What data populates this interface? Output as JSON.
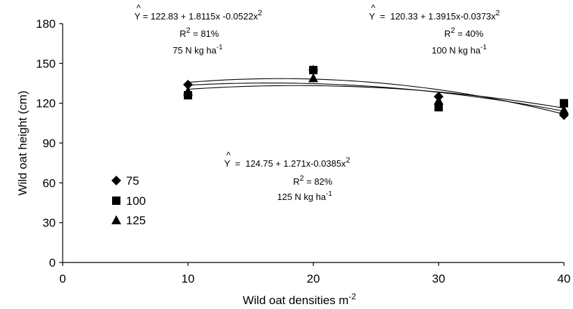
{
  "chart_data": {
    "type": "scatter",
    "xlabel": "Wild oat densities m",
    "xlabel_sup": "-2",
    "ylabel": "Wild oat height (cm)",
    "xlim": [
      0,
      40
    ],
    "ylim": [
      0,
      180
    ],
    "xticks": [
      "0",
      "10",
      "20",
      "30",
      "40"
    ],
    "yticks": [
      "0",
      "30",
      "60",
      "90",
      "120",
      "150",
      "180"
    ],
    "grid": false,
    "legend_position": "left",
    "series": [
      {
        "name": "75",
        "marker": "diamond",
        "x": [
          10,
          20,
          30,
          40
        ],
        "y": [
          134,
          145,
          125,
          111
        ],
        "fit": {
          "a": 122.83,
          "b": 1.8115,
          "c": -0.0522
        }
      },
      {
        "name": "100",
        "marker": "square",
        "x": [
          10,
          20,
          30,
          40
        ],
        "y": [
          126,
          145,
          117,
          120
        ],
        "fit": {
          "a": 120.33,
          "b": 1.3915,
          "c": -0.0373
        }
      },
      {
        "name": "125",
        "marker": "triangle",
        "x": [
          10,
          20,
          30,
          40
        ],
        "y": [
          129,
          139,
          122,
          115
        ],
        "fit": {
          "a": 124.75,
          "b": 1.271,
          "c": -0.0385
        }
      }
    ],
    "annotations": [
      {
        "hat": "^",
        "y_symbol": "Y",
        "equation": " = 122.83 + 1.8115x -0.0522x",
        "eq_sup": "2",
        "r2_prefix": "R",
        "r2_sup": "2",
        "r2_value": " = 81%",
        "dose_text": "75 N kg ha",
        "dose_sup": "-1"
      },
      {
        "hat": "^",
        "y_symbol": "Y",
        "equation": "  =  120.33 + 1.3915x-0.0373x",
        "eq_sup": "2",
        "r2_prefix": "R",
        "r2_sup": "2",
        "r2_value": " = 40%",
        "dose_text": "100 N kg ha",
        "dose_sup": "-1"
      },
      {
        "hat": "^",
        "y_symbol": "Y",
        "equation": "  =  124.75 + 1.271x-0.0385x",
        "eq_sup": "2",
        "r2_prefix": "R",
        "r2_sup": "2",
        "r2_value": " = 82%",
        "dose_text": "125 N kg ha",
        "dose_sup": "-1"
      }
    ]
  }
}
